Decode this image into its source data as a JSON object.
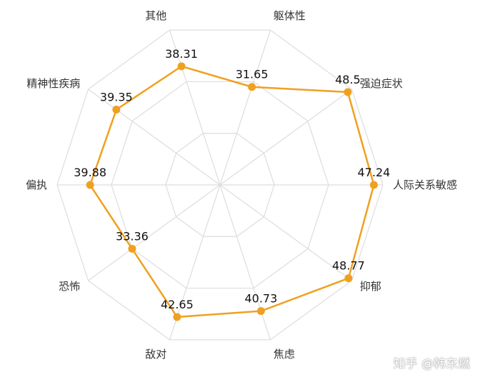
{
  "chart_data": {
    "type": "radar",
    "axes": [
      "躯体性",
      "强迫症状",
      "人际关系敏感",
      "抑郁",
      "焦虑",
      "敌对",
      "恐怖",
      "偏执",
      "精神性疾病",
      "其他"
    ],
    "values": [
      31.65,
      48.5,
      47.24,
      48.77,
      40.73,
      42.65,
      33.36,
      39.88,
      39.35,
      38.31
    ],
    "value_labels": [
      "31.65",
      "48.5",
      "47.24",
      "48.77",
      "40.73",
      "42.65",
      "33.36",
      "39.88",
      "39.35",
      "38.31"
    ],
    "rmax": 50,
    "rings": 3,
    "grid": true,
    "colors": {
      "series": "#f0a020",
      "grid": "#dddddd",
      "label": "#333333"
    }
  },
  "watermark": "知乎 @韩东燃"
}
